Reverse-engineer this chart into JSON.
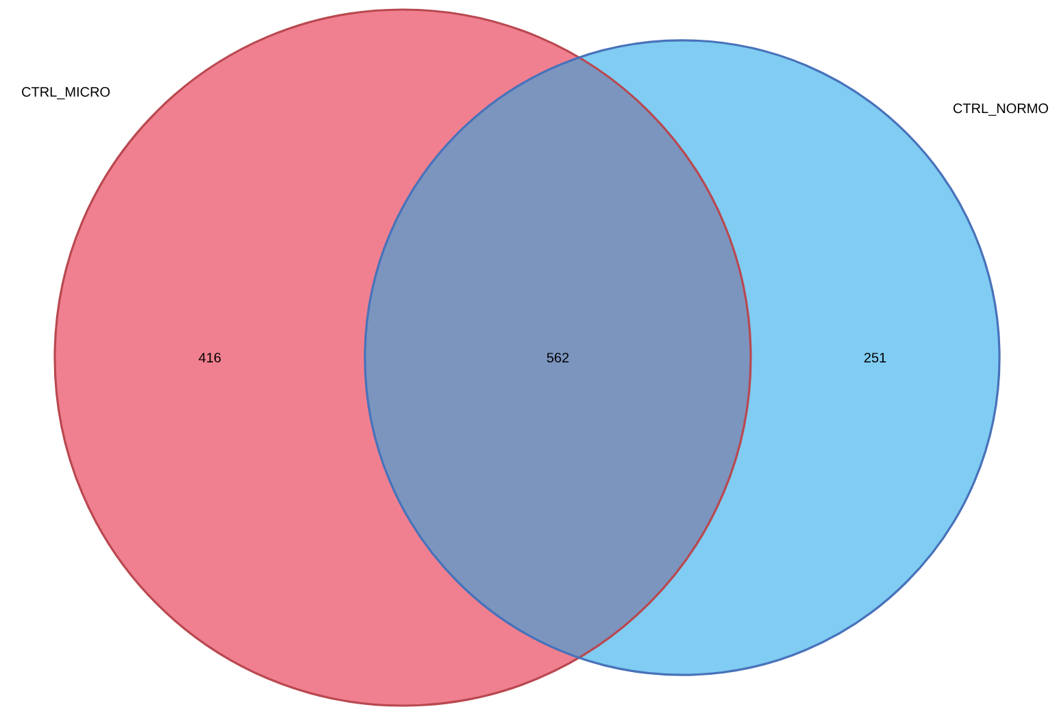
{
  "chart_data": {
    "type": "other",
    "categories": [
      null,
      null,
      null
    ],
    "values": [
      416,
      562,
      251
    ],
    "colors": [
      "#f0808f",
      "#7b95bf",
      "#80ccf2"
    ],
    "data_labels": true,
    "annotations": [
      "CTRL_MICRO",
      "CTRL_NORMO"
    ]
  }
}
